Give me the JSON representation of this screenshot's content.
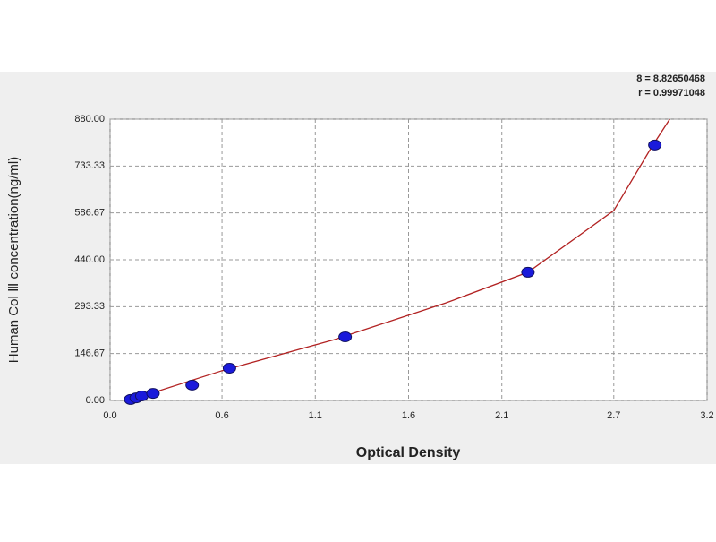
{
  "chart_data": {
    "type": "scatter",
    "annotations": [
      "8 = 8.82650468",
      "r = 0.99971048"
    ],
    "xlabel": "Optical Density",
    "ylabel": "Human Col Ⅲ concentration(ng/ml)",
    "xlim": [
      0,
      3.2
    ],
    "xticks": [
      {
        "value": 0,
        "label": "0.0"
      },
      0.6,
      1.1,
      1.6,
      2.1,
      2.7,
      3.2
    ],
    "ylim": [
      0,
      880
    ],
    "yticks": [
      {
        "value": 0,
        "label": "0.00"
      },
      146.67,
      293.33,
      {
        "value": 440,
        "label": "440.00"
      },
      586.67,
      733.33,
      {
        "value": 880,
        "label": "880.00"
      }
    ],
    "grid": true,
    "series": [
      {
        "type": "scatter",
        "color": "#1a1adb",
        "x": [
          0.11,
          0.14,
          0.17,
          0.23,
          0.44,
          0.64,
          1.26,
          2.24,
          2.92
        ],
        "values": [
          3,
          8,
          14,
          22,
          48,
          101,
          199,
          401,
          799
        ]
      },
      {
        "type": "line",
        "color": "#b22222",
        "x": [
          0.1,
          0.6,
          1.2,
          1.8,
          2.24,
          2.7,
          2.9,
          3.0
        ],
        "values": [
          0,
          93,
          190,
          305,
          401,
          594,
          790,
          880
        ]
      }
    ]
  }
}
